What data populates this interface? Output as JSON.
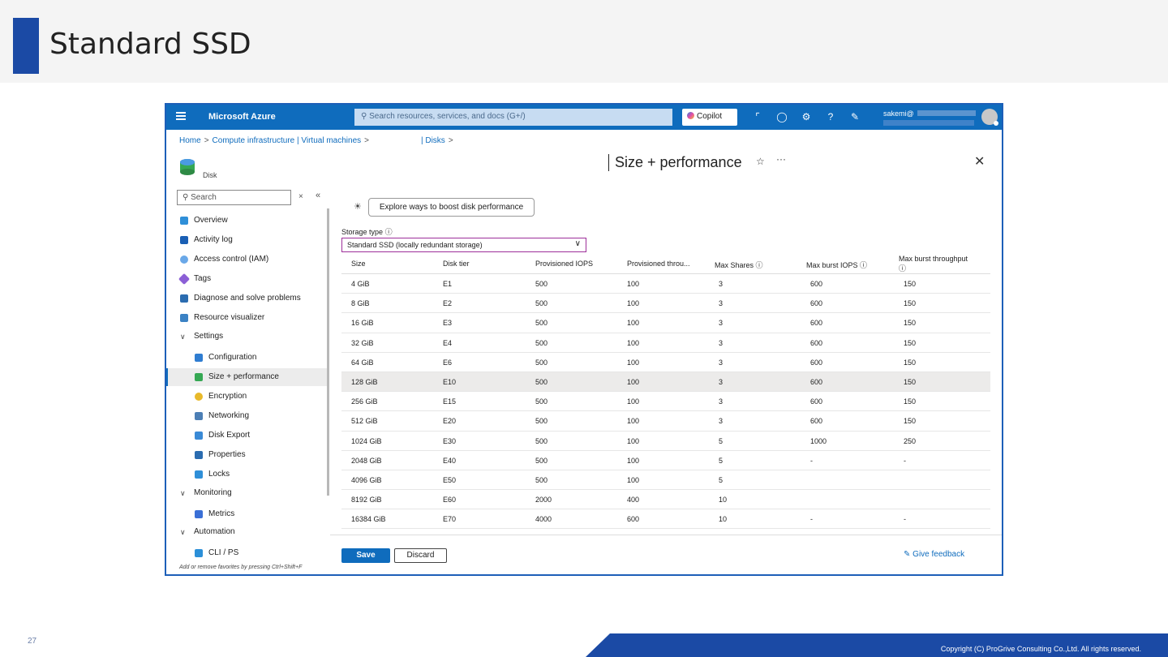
{
  "slide": {
    "title": "Standard SSD",
    "page_number": "27",
    "copyright": "Copyright (C) ProGrive Consulting Co.,Ltd. All rights reserved.",
    "accent_color": "#1b4aa5"
  },
  "portal": {
    "brand": "Microsoft Azure",
    "search_placeholder": "Search resources, services, and docs (G+/)",
    "copilot_label": "Copilot",
    "user_name": "sakemi@",
    "accent_color": "#0f6cbd",
    "topbar_icons": [
      "chart-icon",
      "bell-icon",
      "gear-icon",
      "help-icon",
      "feedback-icon"
    ]
  },
  "breadcrumb": {
    "home": "Home",
    "compute": "Compute infrastructure | Virtual machines",
    "disks": "| Disks"
  },
  "blade": {
    "resource_type": "Disk",
    "title": "Size + performance"
  },
  "sidebar": {
    "search_placeholder": "Search",
    "items": [
      {
        "label": "Overview",
        "icon": "disk-icon"
      },
      {
        "label": "Activity log",
        "icon": "log-icon"
      },
      {
        "label": "Access control (IAM)",
        "icon": "people-icon"
      },
      {
        "label": "Tags",
        "icon": "tag-icon"
      },
      {
        "label": "Diagnose and solve problems",
        "icon": "wrench-icon"
      },
      {
        "label": "Resource visualizer",
        "icon": "hierarchy-icon"
      },
      {
        "label": "Settings",
        "icon": "chevron-down-icon"
      },
      {
        "label": "Configuration",
        "icon": "config-icon"
      },
      {
        "label": "Size + performance",
        "icon": "disk-icon"
      },
      {
        "label": "Encryption",
        "icon": "key-icon"
      },
      {
        "label": "Networking",
        "icon": "network-icon"
      },
      {
        "label": "Disk Export",
        "icon": "export-icon"
      },
      {
        "label": "Properties",
        "icon": "properties-icon"
      },
      {
        "label": "Locks",
        "icon": "lock-icon"
      },
      {
        "label": "Monitoring",
        "icon": "chevron-down-icon"
      },
      {
        "label": "Metrics",
        "icon": "metrics-icon"
      },
      {
        "label": "Automation",
        "icon": "chevron-down-icon"
      },
      {
        "label": "CLI / PS",
        "icon": "terminal-icon"
      }
    ],
    "hint": "Add or remove favorites by pressing Ctrl+Shift+F"
  },
  "main": {
    "boost_label": "Explore ways to boost disk performance",
    "storage_type_label": "Storage type",
    "storage_type_value": "Standard SSD (locally redundant storage)",
    "columns": [
      "Size",
      "Disk tier",
      "Provisioned IOPS",
      "Provisioned throu...",
      "Max Shares",
      "Max burst IOPS",
      "Max burst throughput"
    ],
    "rows": [
      [
        "4 GiB",
        "E1",
        "500",
        "100",
        "3",
        "600",
        "150"
      ],
      [
        "8 GiB",
        "E2",
        "500",
        "100",
        "3",
        "600",
        "150"
      ],
      [
        "16 GiB",
        "E3",
        "500",
        "100",
        "3",
        "600",
        "150"
      ],
      [
        "32 GiB",
        "E4",
        "500",
        "100",
        "3",
        "600",
        "150"
      ],
      [
        "64 GiB",
        "E6",
        "500",
        "100",
        "3",
        "600",
        "150"
      ],
      [
        "128 GiB",
        "E10",
        "500",
        "100",
        "3",
        "600",
        "150"
      ],
      [
        "256 GiB",
        "E15",
        "500",
        "100",
        "3",
        "600",
        "150"
      ],
      [
        "512 GiB",
        "E20",
        "500",
        "100",
        "3",
        "600",
        "150"
      ],
      [
        "1024 GiB",
        "E30",
        "500",
        "100",
        "5",
        "1000",
        "250"
      ],
      [
        "2048 GiB",
        "E40",
        "500",
        "100",
        "5",
        "-",
        "-"
      ],
      [
        "4096 GiB",
        "E50",
        "500",
        "100",
        "5",
        "",
        ""
      ],
      [
        "8192 GiB",
        "E60",
        "2000",
        "400",
        "10",
        "",
        ""
      ],
      [
        "16384 GiB",
        "E70",
        "4000",
        "600",
        "10",
        "-",
        "-"
      ]
    ],
    "selected_row": 5,
    "save_label": "Save",
    "discard_label": "Discard",
    "feedback_label": "Give feedback"
  }
}
